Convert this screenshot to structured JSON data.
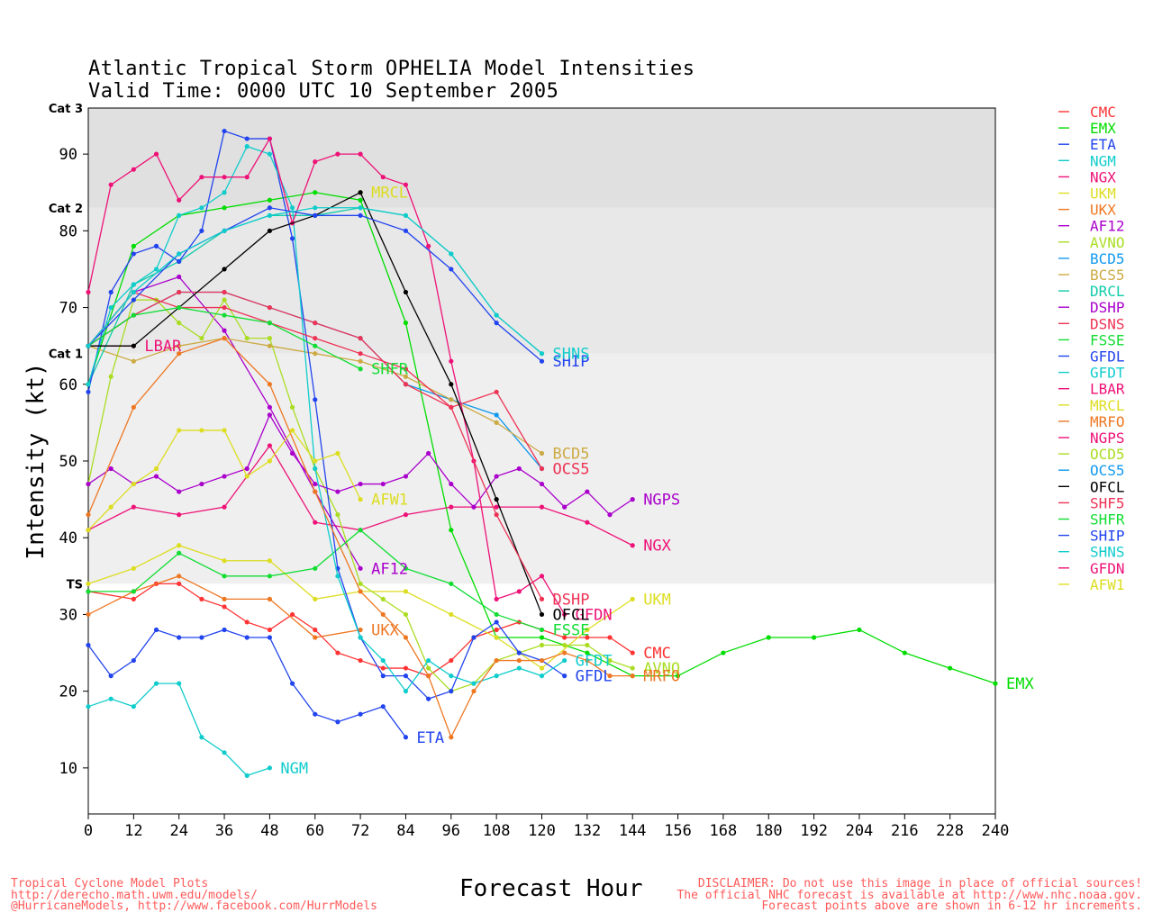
{
  "header": {
    "title_line1": "Atlantic Tropical Storm OPHELIA Model Intensities",
    "title_line2": "Valid Time: 0000 UTC 10 September 2005"
  },
  "footer": {
    "left": [
      "Tropical Cyclone Model Plots",
      "http://derecho.math.uwm.edu/models/",
      "@HurricaneModels, http://www.facebook.com/HurrModels"
    ],
    "right": [
      "DISCLAIMER: Do not use this image in place of official sources!",
      "The official NHC forecast is available at http://www.nhc.noaa.gov.",
      "Forecast points above are shown in 6-12 hr increments."
    ]
  },
  "chart_data": {
    "type": "line",
    "title": "Atlantic Tropical Storm OPHELIA Model Intensities",
    "subtitle": "Valid Time: 0000 UTC 10 September 2005",
    "xlabel": "Forecast Hour",
    "ylabel": "Intensity (kt)",
    "xlim": [
      0,
      240
    ],
    "ylim": [
      4,
      96
    ],
    "xticks": [
      0,
      12,
      24,
      36,
      48,
      60,
      72,
      84,
      96,
      108,
      120,
      132,
      144,
      156,
      168,
      180,
      192,
      204,
      216,
      228,
      240
    ],
    "yticks": [
      10,
      20,
      30,
      40,
      50,
      60,
      70,
      80,
      90
    ],
    "bands": [
      {
        "from": 34,
        "to": 64,
        "color": "#efefef"
      },
      {
        "from": 64,
        "to": 83,
        "color": "#e8e8e8"
      },
      {
        "from": 83,
        "to": 96,
        "color": "#e0e0e0"
      }
    ],
    "category_labels": [
      {
        "label": "TS",
        "value": 34
      },
      {
        "label": "Cat 1",
        "value": 64
      },
      {
        "label": "Cat 2",
        "value": 83
      },
      {
        "label": "Cat 3",
        "value": 96
      }
    ],
    "legend_position": "right",
    "series": [
      {
        "name": "CMC",
        "color": "#ff3333",
        "x": [
          0,
          12,
          18,
          24,
          30,
          36,
          42,
          48,
          54,
          60,
          66,
          72,
          78,
          84,
          90,
          96,
          102,
          108,
          114,
          120,
          126,
          132,
          138,
          144
        ],
        "y": [
          33,
          32,
          34,
          34,
          32,
          31,
          29,
          28,
          30,
          28,
          25,
          24,
          23,
          23,
          22,
          24,
          27,
          28,
          29,
          28,
          27,
          27,
          27,
          25
        ],
        "label": "CMC",
        "label_x": 144,
        "label_y": 25
      },
      {
        "name": "EMX",
        "color": "#00dd00",
        "x": [
          0,
          12,
          24,
          36,
          48,
          60,
          72,
          84,
          96,
          108,
          120,
          132,
          144,
          156,
          168,
          180,
          192,
          204,
          216,
          228,
          240
        ],
        "y": [
          60,
          78,
          82,
          83,
          84,
          85,
          84,
          68,
          41,
          27,
          27,
          25,
          22,
          22,
          25,
          27,
          27,
          28,
          25,
          23,
          21
        ],
        "label": "EMX",
        "label_x": 240,
        "label_y": 21
      },
      {
        "name": "ETA",
        "color": "#2244ee",
        "x": [
          0,
          6,
          12,
          18,
          24,
          30,
          36,
          42,
          48,
          54,
          60,
          66,
          72,
          78,
          84
        ],
        "y": [
          26,
          22,
          24,
          28,
          27,
          27,
          28,
          27,
          27,
          21,
          17,
          16,
          17,
          18,
          14
        ],
        "label": "ETA",
        "label_x": 84,
        "label_y": 14
      },
      {
        "name": "NGM",
        "color": "#11cccc",
        "x": [
          0,
          6,
          12,
          18,
          24,
          30,
          36,
          42,
          48
        ],
        "y": [
          18,
          19,
          18,
          21,
          21,
          14,
          12,
          9,
          10
        ],
        "label": "NGM",
        "label_x": 48,
        "label_y": 10
      },
      {
        "name": "NGX",
        "color": "#ee1177",
        "x": [
          0,
          12,
          24,
          36,
          48,
          60,
          72,
          84,
          96,
          108,
          120,
          132,
          144
        ],
        "y": [
          41,
          44,
          43,
          44,
          52,
          42,
          41,
          43,
          44,
          44,
          44,
          42,
          39
        ],
        "label": "NGX",
        "label_x": 144,
        "label_y": 39
      },
      {
        "name": "UKM",
        "color": "#dddd22",
        "x": [
          0,
          12,
          24,
          36,
          48,
          60,
          72,
          84,
          96,
          108,
          120,
          132,
          144
        ],
        "y": [
          34,
          36,
          39,
          37,
          37,
          32,
          33,
          33,
          30,
          27,
          23,
          28,
          32
        ],
        "label": "UKM",
        "label_x": 144,
        "label_y": 32
      },
      {
        "name": "UKX",
        "color": "#ee7722",
        "x": [
          0,
          12,
          24,
          36,
          48,
          60,
          72
        ],
        "y": [
          30,
          33,
          35,
          32,
          32,
          27,
          28
        ],
        "label": "UKX",
        "label_x": 72,
        "label_y": 28
      },
      {
        "name": "AF12",
        "color": "#aa00cc",
        "x": [
          0,
          12,
          24,
          36,
          48,
          60,
          72
        ],
        "y": [
          65,
          72,
          74,
          67,
          57,
          46,
          36
        ],
        "label": "AF12",
        "label_x": 72,
        "label_y": 36
      },
      {
        "name": "AVNO",
        "color": "#aadd22",
        "x": [
          0,
          6,
          12,
          18,
          24,
          30,
          36,
          42,
          48,
          54,
          60,
          66,
          72,
          78,
          84,
          90,
          96,
          102,
          108,
          114,
          120,
          126,
          132,
          138,
          144
        ],
        "y": [
          47,
          61,
          71,
          71,
          68,
          66,
          71,
          66,
          66,
          57,
          49,
          43,
          34,
          32,
          30,
          23,
          20,
          21,
          24,
          25,
          26,
          26,
          26,
          24,
          23
        ],
        "label": "AVNO",
        "label_x": 144,
        "label_y": 23
      },
      {
        "name": "BCD5",
        "color": "#1199ee",
        "x": [
          0,
          12,
          24,
          36,
          48,
          60,
          72,
          84,
          96,
          108,
          120
        ],
        "y": [
          65,
          69,
          72,
          72,
          70,
          68,
          66,
          60,
          58,
          56,
          49
        ],
        "label": "",
        "label_x": 120,
        "label_y": 49
      },
      {
        "name": "BCS5",
        "color": "#ccaa44",
        "x": [
          0,
          12,
          24,
          36,
          48,
          60,
          72,
          84,
          96,
          108,
          120
        ],
        "y": [
          65,
          63,
          65,
          66,
          65,
          64,
          63,
          61,
          58,
          55,
          51
        ],
        "label": "BCD5",
        "label_x": 120,
        "label_y": 51
      },
      {
        "name": "DRCL",
        "color": "#11ccaa",
        "x": [
          0,
          12,
          24,
          36,
          48,
          60,
          72,
          84,
          96,
          108,
          120
        ],
        "y": [
          60,
          73,
          76,
          80,
          82,
          82,
          83,
          82,
          77,
          69,
          64
        ],
        "label": "",
        "label_x": 120,
        "label_y": 64
      },
      {
        "name": "DSHP",
        "color": "#aa00cc",
        "x": [
          0,
          6,
          12,
          18,
          24,
          30,
          36,
          42,
          48,
          54,
          60,
          66,
          72,
          78,
          84,
          90,
          96,
          102,
          108,
          114,
          120,
          126,
          132,
          138,
          144
        ],
        "y": [
          47,
          49,
          47,
          48,
          46,
          47,
          48,
          49,
          56,
          51,
          47,
          46,
          47,
          47,
          48,
          51,
          47,
          44,
          48,
          49,
          47,
          44,
          46,
          43,
          45
        ],
        "label": "NGPS",
        "label_x": 144,
        "label_y": 45
      },
      {
        "name": "DSNS",
        "color": "#ee3355",
        "x": [
          0,
          12,
          24,
          36,
          48,
          60,
          72,
          84,
          96,
          108,
          120
        ],
        "y": [
          65,
          69,
          72,
          72,
          70,
          68,
          66,
          60,
          57,
          59,
          49
        ],
        "label": "OCS5",
        "label_x": 120,
        "label_y": 49
      },
      {
        "name": "FSSE",
        "color": "#11dd33",
        "x": [
          0,
          12,
          24,
          36,
          48,
          60,
          72,
          84,
          96,
          108,
          120
        ],
        "y": [
          33,
          33,
          38,
          35,
          35,
          36,
          41,
          36,
          34,
          30,
          28
        ],
        "label": "FSSE",
        "label_x": 120,
        "label_y": 28
      },
      {
        "name": "GFDL",
        "color": "#2244ee",
        "x": [
          0,
          6,
          12,
          18,
          24,
          30,
          36,
          42,
          48,
          54,
          60,
          66,
          72,
          78,
          84,
          90,
          96,
          102,
          108,
          114,
          120,
          126
        ],
        "y": [
          59,
          72,
          77,
          78,
          76,
          80,
          93,
          92,
          92,
          79,
          58,
          36,
          27,
          22,
          22,
          19,
          20,
          27,
          29,
          25,
          24,
          22
        ],
        "label": "GFDL",
        "label_x": 126,
        "label_y": 22
      },
      {
        "name": "GFDT",
        "color": "#11cccc",
        "x": [
          0,
          6,
          12,
          18,
          24,
          30,
          36,
          42,
          48,
          54,
          60,
          66,
          72,
          78,
          84,
          90,
          96,
          102,
          108,
          114,
          120,
          126
        ],
        "y": [
          60,
          70,
          73,
          75,
          82,
          83,
          85,
          91,
          90,
          83,
          49,
          35,
          27,
          24,
          20,
          24,
          22,
          21,
          22,
          23,
          22,
          24
        ],
        "label": "GFDT",
        "label_x": 126,
        "label_y": 24
      },
      {
        "name": "LBAR",
        "color": "#ee1177",
        "x": [
          0,
          12
        ],
        "y": [
          65,
          65
        ],
        "label": "LBAR",
        "label_x": 12,
        "label_y": 65
      },
      {
        "name": "MRCL",
        "color": "#dddd22",
        "x": [
          72
        ],
        "y": [
          85
        ],
        "label": "MRCL",
        "label_x": 72,
        "label_y": 85
      },
      {
        "name": "MRFO",
        "color": "#ee7722",
        "x": [
          0,
          12,
          24,
          36,
          48,
          60,
          72,
          78,
          84,
          90,
          96,
          102,
          108,
          114,
          120,
          126,
          132,
          138,
          144
        ],
        "y": [
          43,
          57,
          64,
          66,
          60,
          46,
          33,
          30,
          27,
          22,
          14,
          20,
          24,
          24,
          24,
          25,
          24,
          22,
          22
        ],
        "label": "MRFO",
        "label_x": 144,
        "label_y": 22
      },
      {
        "name": "NGPS",
        "color": "#ee1177",
        "x": [
          0,
          6,
          12,
          18,
          24,
          30,
          36,
          42,
          48,
          54,
          60,
          66,
          72,
          78,
          84,
          90,
          96,
          102,
          108,
          114,
          120,
          126
        ],
        "y": [
          72,
          86,
          88,
          90,
          84,
          87,
          87,
          87,
          92,
          81,
          89,
          90,
          90,
          87,
          86,
          78,
          63,
          50,
          32,
          33,
          35,
          30
        ],
        "label": "GFDN",
        "label_x": 126,
        "label_y": 30
      },
      {
        "name": "OCD5",
        "color": "#aadd22",
        "x": [],
        "y": [],
        "label": "",
        "label_x": 0,
        "label_y": 0
      },
      {
        "name": "OCS5",
        "color": "#1199ee",
        "x": [],
        "y": [],
        "label": "",
        "label_x": 0,
        "label_y": 0
      },
      {
        "name": "OFCL",
        "color": "#000000",
        "x": [
          0,
          12,
          24,
          36,
          48,
          60,
          72,
          84,
          96,
          108,
          120
        ],
        "y": [
          65,
          65,
          70,
          75,
          80,
          82,
          85,
          72,
          60,
          45,
          30
        ],
        "label": "OFCL",
        "label_x": 120,
        "label_y": 30
      },
      {
        "name": "SHF5",
        "color": "#ee3355",
        "x": [
          0,
          12,
          24,
          36,
          48,
          60,
          72,
          84,
          96,
          108,
          120
        ],
        "y": [
          65,
          72,
          70,
          70,
          68,
          66,
          64,
          62,
          57,
          43,
          32
        ],
        "label": "DSHP",
        "label_x": 120,
        "label_y": 32
      },
      {
        "name": "SHFR",
        "color": "#11dd33",
        "x": [
          0,
          12,
          24,
          36,
          48,
          60,
          72
        ],
        "y": [
          65,
          69,
          70,
          69,
          68,
          65,
          62
        ],
        "label": "SHFR",
        "label_x": 72,
        "label_y": 62
      },
      {
        "name": "SHIP",
        "color": "#2244ee",
        "x": [
          0,
          12,
          24,
          36,
          48,
          60,
          72,
          84,
          96,
          108,
          120
        ],
        "y": [
          65,
          71,
          77,
          80,
          83,
          82,
          82,
          80,
          75,
          68,
          63
        ],
        "label": "SHIP",
        "label_x": 120,
        "label_y": 63
      },
      {
        "name": "SHNS",
        "color": "#11cccc",
        "x": [
          0,
          12,
          24,
          36,
          48,
          60,
          72,
          84,
          96,
          108,
          120
        ],
        "y": [
          65,
          72,
          77,
          80,
          82,
          83,
          83,
          82,
          77,
          69,
          64
        ],
        "label": "SHNS",
        "label_x": 120,
        "label_y": 64
      },
      {
        "name": "GFDN",
        "color": "#ee1177",
        "x": [],
        "y": [],
        "label": "",
        "label_x": 0,
        "label_y": 0
      },
      {
        "name": "AFW1",
        "color": "#dddd22",
        "x": [
          0,
          6,
          12,
          18,
          24,
          30,
          36,
          42,
          48,
          54,
          60,
          66,
          72
        ],
        "y": [
          41,
          44,
          47,
          49,
          54,
          54,
          54,
          48,
          50,
          54,
          50,
          51,
          45
        ],
        "label": "AFW1",
        "label_x": 72,
        "label_y": 45
      }
    ]
  }
}
